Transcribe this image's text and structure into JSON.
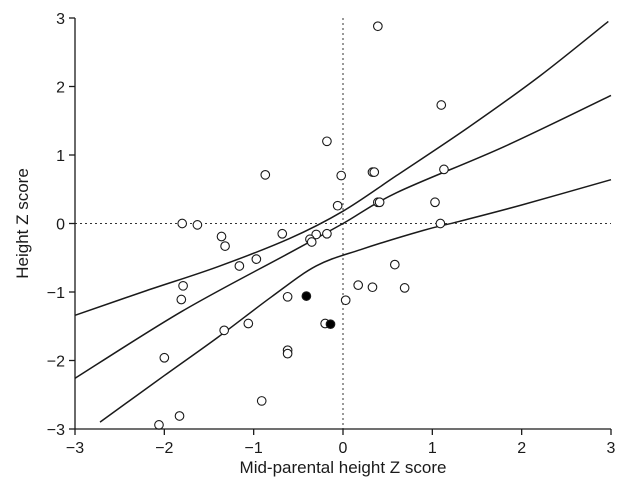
{
  "chart_data": {
    "type": "scatter",
    "title": "",
    "xlabel": "Mid-parental height Z score",
    "ylabel": "Height Z score",
    "xlim": [
      -3,
      3
    ],
    "ylim": [
      -3,
      3
    ],
    "xticks": [
      -3,
      -2,
      -1,
      0,
      1,
      2,
      3
    ],
    "yticks": [
      -3,
      -2,
      -1,
      0,
      1,
      2,
      3
    ],
    "tick_labels_x": [
      "−3",
      "−2",
      "−1",
      "0",
      "1",
      "2",
      "3"
    ],
    "tick_labels_y": [
      "−3",
      "−2",
      "−1",
      "0",
      "1",
      "2",
      "3"
    ],
    "grid": false,
    "reference_lines": {
      "x": 0,
      "y": 0,
      "style": "dotted"
    },
    "series": [
      {
        "marker": "open-circle",
        "points": [
          [
            0.39,
            2.88
          ],
          [
            1.1,
            1.73
          ],
          [
            -0.18,
            1.2
          ],
          [
            0.33,
            0.75
          ],
          [
            0.35,
            0.75
          ],
          [
            1.13,
            0.79
          ],
          [
            -0.87,
            0.71
          ],
          [
            -0.02,
            0.7
          ],
          [
            1.03,
            0.31
          ],
          [
            0.39,
            0.31
          ],
          [
            0.41,
            0.31
          ],
          [
            -0.06,
            0.26
          ],
          [
            -1.8,
            0.0
          ],
          [
            -1.63,
            -0.02
          ],
          [
            1.09,
            0.0
          ],
          [
            -1.36,
            -0.19
          ],
          [
            -0.68,
            -0.15
          ],
          [
            -0.3,
            -0.16
          ],
          [
            -0.18,
            -0.15
          ],
          [
            -0.37,
            -0.23
          ],
          [
            -0.35,
            -0.27
          ],
          [
            -1.32,
            -0.33
          ],
          [
            -0.97,
            -0.52
          ],
          [
            -1.16,
            -0.62
          ],
          [
            0.58,
            -0.6
          ],
          [
            -1.79,
            -0.91
          ],
          [
            -1.81,
            -1.11
          ],
          [
            0.17,
            -0.9
          ],
          [
            0.33,
            -0.93
          ],
          [
            0.69,
            -0.94
          ],
          [
            -0.62,
            -1.07
          ],
          [
            0.03,
            -1.12
          ],
          [
            -0.2,
            -1.46
          ],
          [
            -1.06,
            -1.46
          ],
          [
            -1.33,
            -1.56
          ],
          [
            -0.62,
            -1.85
          ],
          [
            -0.62,
            -1.9
          ],
          [
            -2.0,
            -1.96
          ],
          [
            -0.91,
            -2.59
          ],
          [
            -1.83,
            -2.81
          ],
          [
            -2.06,
            -2.94
          ]
        ]
      },
      {
        "marker": "filled-circle",
        "points": [
          [
            -0.41,
            -1.06
          ],
          [
            -0.14,
            -1.47
          ]
        ]
      }
    ],
    "fit_lines": [
      {
        "role": "regression",
        "points": [
          [
            -3.0,
            -2.26
          ],
          [
            -1.8,
            -1.28
          ],
          [
            -0.6,
            -0.43
          ],
          [
            0.0,
            0.0
          ],
          [
            0.6,
            0.45
          ],
          [
            1.8,
            1.12
          ],
          [
            3.0,
            1.87
          ]
        ]
      },
      {
        "role": "upper-band",
        "points": [
          [
            -3.0,
            -1.34
          ],
          [
            -2.2,
            -0.98
          ],
          [
            -1.4,
            -0.63
          ],
          [
            -0.6,
            -0.22
          ],
          [
            0.0,
            0.18
          ],
          [
            0.6,
            0.7
          ],
          [
            1.4,
            1.4
          ],
          [
            2.2,
            2.15
          ],
          [
            2.97,
            2.95
          ]
        ]
      },
      {
        "role": "lower-band",
        "points": [
          [
            -2.72,
            -2.9
          ],
          [
            -2.0,
            -2.22
          ],
          [
            -1.4,
            -1.66
          ],
          [
            -0.8,
            -1.07
          ],
          [
            -0.3,
            -0.62
          ],
          [
            0.2,
            -0.38
          ],
          [
            0.9,
            -0.1
          ],
          [
            1.3,
            0.03
          ],
          [
            2.0,
            0.27
          ],
          [
            3.0,
            0.64
          ]
        ]
      }
    ]
  }
}
